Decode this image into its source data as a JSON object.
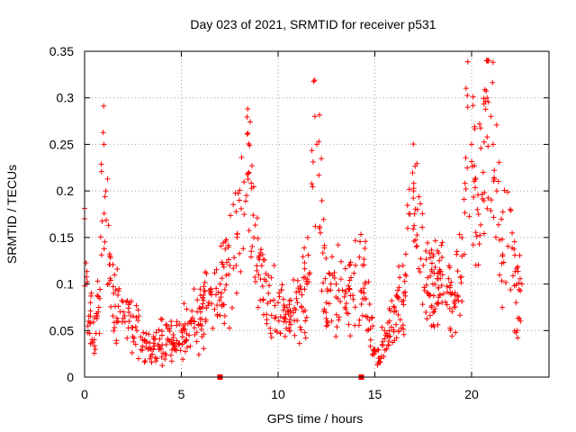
{
  "chart_data": {
    "type": "scatter",
    "title": "Day 023 of 2021, SRMTID for receiver p531",
    "xlabel": "GPS time / hours",
    "ylabel": "SRMTID / TECUs",
    "xlim": [
      0,
      24
    ],
    "ylim": [
      0,
      0.35
    ],
    "xticks": [
      0,
      5,
      10,
      15,
      20
    ],
    "xtick_labels": [
      "0",
      "5",
      "10",
      "15",
      "20"
    ],
    "yticks": [
      0,
      0.05,
      0.1,
      0.15,
      0.2,
      0.25,
      0.3,
      0.35
    ],
    "ytick_labels": [
      "0",
      "0.05",
      "0.1",
      "0.15",
      "0.2",
      "0.25",
      "0.3",
      "0.35"
    ],
    "grid": true,
    "marker": "+",
    "color": "#ff0000",
    "point_count": 900,
    "series": [
      {
        "name": "SRMTID",
        "x": [
          0.0,
          0.1,
          0.2,
          0.3,
          0.5,
          0.7,
          1.0,
          1.1,
          1.3,
          1.5,
          2.0,
          2.3,
          2.7,
          3.0,
          3.4,
          3.8,
          4.0,
          4.5,
          5.0,
          5.5,
          6.0,
          6.5,
          7.0,
          7.5,
          8.0,
          8.5,
          9.0,
          9.5,
          10.0,
          10.5,
          11.0,
          11.5,
          11.9,
          12.0,
          12.5,
          13.0,
          13.5,
          14.0,
          14.5,
          15.0,
          15.3,
          15.5,
          16.0,
          16.5,
          17.0,
          17.2,
          17.5,
          18.0,
          18.5,
          19.0,
          19.5,
          19.8,
          20.0,
          20.3,
          20.6,
          20.8,
          21.0,
          21.3,
          21.6,
          22.0,
          22.3,
          22.6
        ],
        "y": [
          0.17,
          0.1,
          0.06,
          0.08,
          0.04,
          0.07,
          0.25,
          0.2,
          0.13,
          0.09,
          0.07,
          0.06,
          0.05,
          0.04,
          0.03,
          0.035,
          0.045,
          0.04,
          0.05,
          0.06,
          0.07,
          0.09,
          0.1,
          0.12,
          0.19,
          0.22,
          0.11,
          0.09,
          0.08,
          0.07,
          0.08,
          0.1,
          0.28,
          0.25,
          0.08,
          0.1,
          0.09,
          0.12,
          0.1,
          0.03,
          0.02,
          0.05,
          0.07,
          0.09,
          0.2,
          0.18,
          0.12,
          0.1,
          0.11,
          0.09,
          0.13,
          0.29,
          0.25,
          0.18,
          0.22,
          0.3,
          0.28,
          0.2,
          0.13,
          0.18,
          0.08,
          0.1
        ]
      }
    ],
    "x_axis_markers": [
      {
        "x": 7.0,
        "y": 0
      },
      {
        "x": 14.3,
        "y": 0
      }
    ]
  }
}
